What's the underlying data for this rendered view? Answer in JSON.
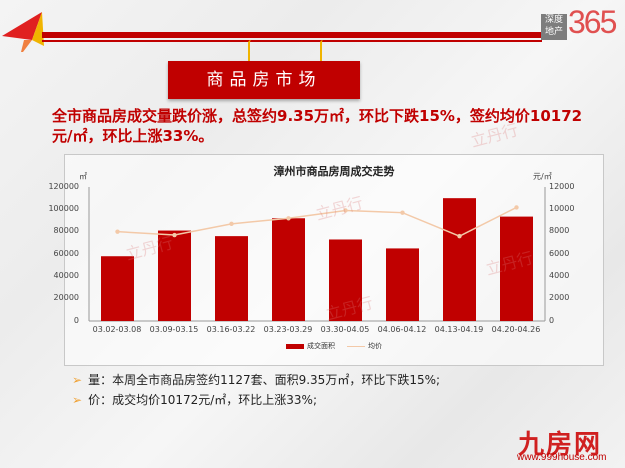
{
  "header": {
    "logo_box_line1": "深度",
    "logo_box_line2": "地产",
    "logo_number": "365",
    "banner_title": "商品房市场"
  },
  "headline": "全市商品房成交量跌价涨，总签约9.35万㎡，环比下跌15%，签约均价10172元/㎡，环比上涨33%。",
  "chart": {
    "title": "漳州市商品房周成交走势",
    "unit_left": "㎡",
    "unit_right": "元/㎡",
    "legend_bar": "成交面积",
    "legend_line": "均价"
  },
  "watermarks": [
    "立丹行",
    "立丹行",
    "立丹行",
    "立丹行",
    "立丹行"
  ],
  "bullets": [
    "量：本周全市商品房签约1127套、面积9.35万㎡，环比下跌15%;",
    "价：成交均价10172元/㎡，环比上涨33%;"
  ],
  "footer": {
    "logo": "九房网",
    "url": "www.999house.com"
  },
  "colors": {
    "accent_red": "#c00000",
    "line_color": "#f3c9a8",
    "hook_gold": "#f0b400"
  },
  "chart_data": {
    "type": "bar",
    "title": "漳州市商品房周成交走势",
    "categories": [
      "03.02-03.08",
      "03.09-03.15",
      "03.16-03.22",
      "03.23-03.29",
      "03.30-04.05",
      "04.06-04.12",
      "04.13-04.19",
      "04.20-04.26"
    ],
    "series": [
      {
        "name": "成交面积",
        "type": "bar",
        "axis": "left",
        "values": [
          58000,
          81000,
          76000,
          92000,
          73000,
          65000,
          110000,
          93500
        ]
      },
      {
        "name": "均价",
        "type": "line",
        "axis": "right",
        "values": [
          8000,
          7700,
          8700,
          9200,
          9900,
          9700,
          7600,
          10172
        ]
      }
    ],
    "ylabel": "㎡",
    "y2label": "元/㎡",
    "ylim": [
      0,
      120000
    ],
    "y2lim": [
      0,
      12000
    ],
    "yticks": [
      "0",
      "20000",
      "40000",
      "60000",
      "80000",
      "100000",
      "120000"
    ],
    "y2ticks": [
      "0",
      "2000",
      "4000",
      "6000",
      "8000",
      "10000",
      "12000"
    ],
    "legend_position": "bottom",
    "grid": false
  }
}
